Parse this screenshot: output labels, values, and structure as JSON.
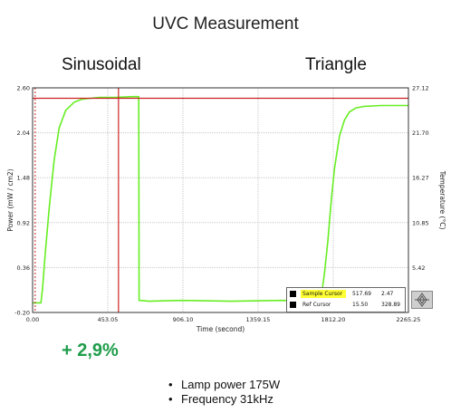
{
  "page": {
    "title": "UVC Measurement",
    "left_label": "Sinusoidal",
    "right_label": "Triangle",
    "improvement": "+ 2,9%",
    "bullets": [
      "Lamp power 175W",
      "Frequency 31kHz"
    ]
  },
  "chart_data": {
    "type": "line",
    "xlabel": "Time (second)",
    "ylabel": "Power (mW / cm2)",
    "y2label": "Temperature (°C)",
    "xlim": [
      0,
      2265.25
    ],
    "ylim": [
      -0.2,
      2.6
    ],
    "y2lim": [
      0,
      27.12
    ],
    "x_ticks": [
      "0.00",
      "453.05",
      "906.10",
      "1359.15",
      "1812.20",
      "2265.25"
    ],
    "y_ticks": [
      "-0.20",
      "0.36",
      "0.92",
      "1.48",
      "2.04",
      "2.60"
    ],
    "y2_ticks": [
      "27.12",
      "21.70",
      "16.27",
      "10.85",
      "5.42"
    ],
    "grid": true,
    "colors": {
      "series": "#66ee22",
      "cursor": "#cc2222",
      "grid": "#c8c8c8",
      "axis_bg": "#ffffff"
    },
    "series": [
      {
        "x": [
          0,
          30,
          50,
          60,
          75,
          100,
          130,
          160,
          200,
          250,
          300,
          350,
          400,
          453,
          500,
          600,
          630,
          640,
          642,
          650,
          700,
          900,
          1200,
          1500,
          1700,
          1740,
          1760,
          1780,
          1800,
          1820,
          1850,
          1880,
          1910,
          1950,
          2000,
          2100,
          2200,
          2265
        ],
        "y": [
          -0.08,
          -0.08,
          -0.08,
          0.1,
          0.5,
          1.1,
          1.7,
          2.1,
          2.32,
          2.42,
          2.46,
          2.47,
          2.48,
          2.48,
          2.48,
          2.49,
          2.49,
          2.49,
          -0.05,
          -0.05,
          -0.06,
          -0.05,
          -0.06,
          -0.05,
          -0.06,
          0.0,
          0.3,
          0.7,
          1.2,
          1.6,
          2.0,
          2.2,
          2.3,
          2.35,
          2.37,
          2.38,
          2.38,
          2.38
        ]
      }
    ],
    "cursors": [
      {
        "name": "Sample Cursor",
        "x": 517.69,
        "y": 2.47,
        "style": "solid"
      },
      {
        "name": "Ref Cursor",
        "x": 15.5,
        "y": 328.89,
        "style": "dashed"
      }
    ],
    "legend": {
      "placement": "bottom-right",
      "rows": [
        {
          "name": "Sample Cursor",
          "v1": "517.69",
          "v2": "2.47",
          "highlight": "#ffff33"
        },
        {
          "name": "Ref Cursor",
          "v1": "15.50",
          "v2": "328.89",
          "highlight": ""
        }
      ]
    }
  }
}
